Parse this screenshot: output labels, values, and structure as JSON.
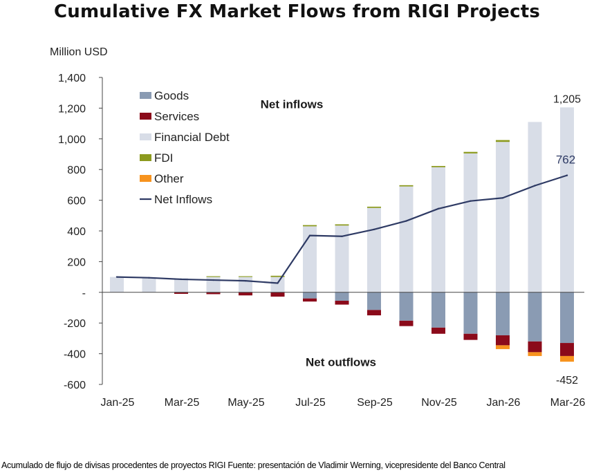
{
  "title": "Cumulative FX Market Flows from RIGI Projects",
  "caption": "Acumulado de flujo de divisas procedentes de proyectos RIGI Fuente: presentación de Vladimir Werning, vicepresidente del Banco Central",
  "chart_data": {
    "type": "bar",
    "stacked": true,
    "title": "Cumulative FX Market Flows from RIGI Projects",
    "ylabel": "Million USD",
    "xlabel": "",
    "ylim": [
      -600,
      1400
    ],
    "yticks": [
      -600,
      -400,
      -200,
      0,
      200,
      400,
      600,
      800,
      1000,
      1200,
      1400
    ],
    "ytick_labels": [
      "-600",
      "-400",
      "-200",
      "-",
      "200",
      "400",
      "600",
      "800",
      "1,000",
      "1,200",
      "1,400"
    ],
    "categories": [
      "Jan-25",
      "Feb-25",
      "Mar-25",
      "Apr-25",
      "May-25",
      "Jun-25",
      "Jul-25",
      "Aug-25",
      "Sep-25",
      "Oct-25",
      "Nov-25",
      "Dec-25",
      "Jan-26",
      "Feb-26",
      "Mar-26"
    ],
    "xtick_labels": [
      "Jan-25",
      "Mar-25",
      "May-25",
      "Jul-25",
      "Sep-25",
      "Nov-25",
      "Jan-26",
      "Mar-26"
    ],
    "series": [
      {
        "name": "Goods",
        "color": "#8a9bb3",
        "values": [
          0,
          0,
          0,
          0,
          0,
          0,
          -40,
          -55,
          -115,
          -185,
          -230,
          -270,
          -280,
          -320,
          -330
        ]
      },
      {
        "name": "Services",
        "color": "#8b0a1a",
        "values": [
          0,
          0,
          -10,
          -12,
          -20,
          -28,
          -20,
          -25,
          -35,
          -35,
          -40,
          -40,
          -65,
          -70,
          -85
        ]
      },
      {
        "name": "Financial Debt",
        "color": "#d8dde7",
        "values": [
          100,
          95,
          92,
          100,
          100,
          100,
          430,
          435,
          550,
          690,
          815,
          905,
          980,
          1110,
          1205
        ]
      },
      {
        "name": "FDI",
        "color": "#8c9a1e",
        "values": [
          0,
          0,
          0,
          5,
          5,
          8,
          8,
          8,
          8,
          8,
          8,
          10,
          12,
          0,
          0
        ]
      },
      {
        "name": "Other",
        "color": "#f7931e",
        "values": [
          0,
          0,
          0,
          0,
          0,
          0,
          0,
          0,
          0,
          0,
          0,
          0,
          -25,
          -25,
          -37
        ]
      },
      {
        "name": "Net Inflows",
        "type": "line",
        "color": "#2e3a64",
        "values": [
          100,
          95,
          85,
          80,
          75,
          60,
          370,
          365,
          410,
          465,
          545,
          595,
          615,
          695,
          762
        ]
      }
    ],
    "annotations": [
      {
        "text": "Net inflows",
        "category": "May-25",
        "y": 1200
      },
      {
        "text": "Net outflows",
        "category": "Jul-25",
        "y": -480
      },
      {
        "text": "1,205",
        "category": "Mar-26",
        "y": 1205
      },
      {
        "text": "762",
        "category": "Mar-26",
        "y": 762
      },
      {
        "text": "-452",
        "category": "Mar-26",
        "y": -452
      }
    ],
    "legend": "top-left",
    "grid": false
  }
}
